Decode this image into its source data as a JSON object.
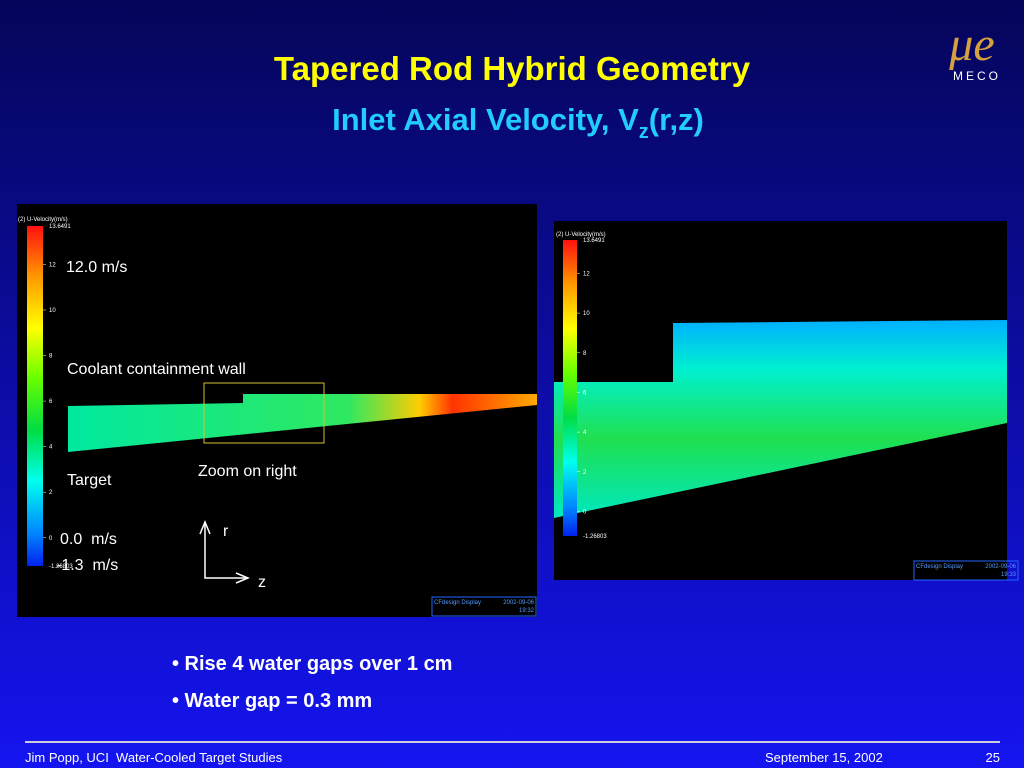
{
  "header": {
    "title": "Tapered Rod Hybrid Geometry",
    "subtitle_main": "Inlet Axial Velocity, V",
    "subtitle_sub": "z",
    "subtitle_end": "(r,z)"
  },
  "logo": {
    "symbol": "μe",
    "name": "MECO"
  },
  "left_panel": {
    "legend_title": "(2) U-Velocity(m/s)",
    "max": "13.6491",
    "ticks": [
      "12",
      "10",
      "8",
      "6",
      "4",
      "2",
      "0"
    ],
    "min": "-1.26803",
    "stamp_name": "CFdesign Display",
    "stamp_date": "2002-09-06",
    "stamp_time": "19:32"
  },
  "right_panel": {
    "legend_title": "(2) U-Velocity(m/s)",
    "max": "13.6491",
    "ticks": [
      "12",
      "10",
      "8",
      "6",
      "4",
      "2",
      "0"
    ],
    "min": "-1.26803",
    "stamp_name": "CFdesign Display",
    "stamp_date": "2002-09-06",
    "stamp_time": "19:33"
  },
  "annotations": {
    "max_speed": "12.0 m/s",
    "wall": "Coolant containment wall",
    "target": "Target",
    "zoom": "Zoom on right",
    "zero_speed": "0.0  m/s",
    "min_speed": "-1.3  m/s",
    "axis_r": "r",
    "axis_z": "z"
  },
  "bullets": [
    "• Rise 4 water gaps over 1 cm",
    "• Water gap = 0.3 mm"
  ],
  "footer": {
    "left": "Jim Popp, UCI  Water-Cooled Target Studies",
    "date": "September 15, 2002",
    "page": "25"
  }
}
